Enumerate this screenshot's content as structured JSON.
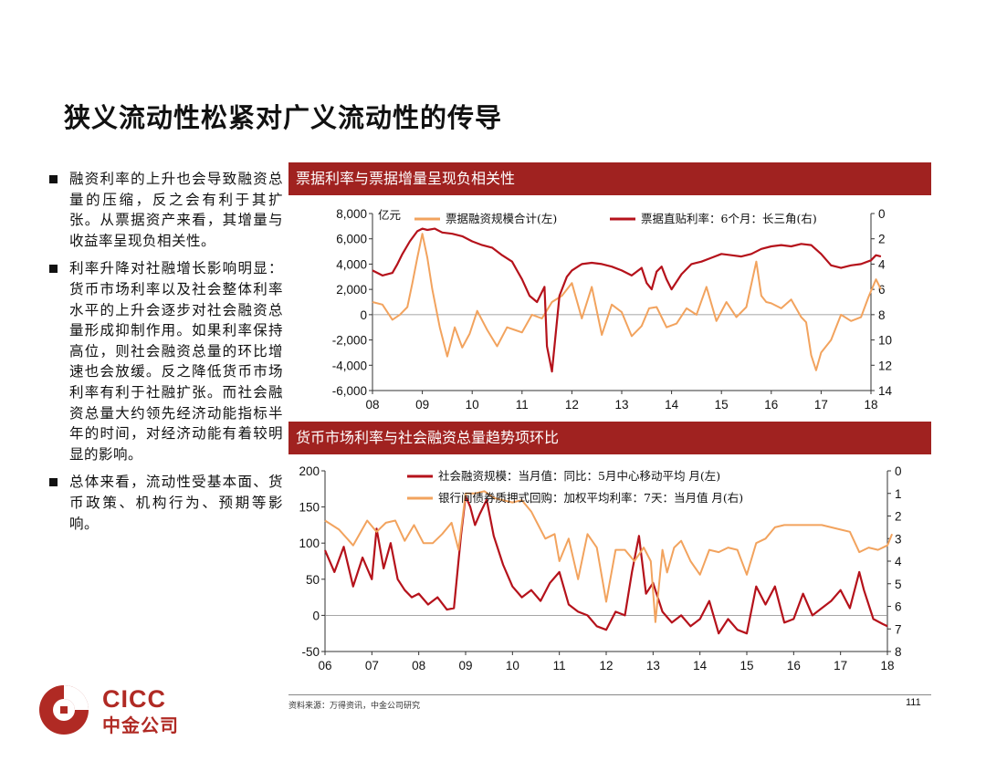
{
  "page": {
    "title": "狭义流动性松紧对广义流动性的传导",
    "bullets": [
      "融资利率的上升也会导致融资总量的压缩，反之会有利于其扩张。从票据资产来看，其增量与收益率呈现负相关性。",
      "利率升降对社融增长影响明显：货币市场利率以及社会整体利率水平的上升会逐步对社会融资总量形成抑制作用。如果利率保持高位，则社会融资总量的环比增速也会放缓。反之降低货币市场利率有利于社融扩张。而社会融资总量大约领先经济动能指标半年的时间，对经济动能有着较明显的影响。",
      "总体来看，流动性受基本面、货币政策、机构行为、预期等影响。"
    ],
    "source": "资料来源：万得资讯，中金公司研究",
    "page_number": "111",
    "logo_en": "CICC",
    "logo_cn": "中金公司"
  },
  "colors": {
    "red": "#b5121b",
    "orange": "#f2a35e",
    "header": "#a02220"
  },
  "chart_data": [
    {
      "type": "line",
      "title": "票据利率与票据增量呈现负相关性",
      "left_unit": "亿元",
      "x_ticks": [
        "08",
        "09",
        "10",
        "11",
        "12",
        "13",
        "14",
        "15",
        "16",
        "17",
        "18"
      ],
      "y_left_ticks": [
        "8,000",
        "6,000",
        "4,000",
        "2,000",
        "0",
        "-2,000",
        "-4,000",
        "-6,000"
      ],
      "y_left_range": [
        -6000,
        8000
      ],
      "y_right_ticks": [
        "0",
        "2",
        "4",
        "6",
        "8",
        "10",
        "12",
        "14"
      ],
      "y_right_range": [
        0,
        14
      ],
      "y_right_inverted": true,
      "series": [
        {
          "name": "票据融资规模合计(左)",
          "axis": "left",
          "color": "#f2a35e",
          "x": [
            2008.0,
            2008.2,
            2008.4,
            2008.55,
            2008.7,
            2008.8,
            2008.9,
            2009.0,
            2009.1,
            2009.2,
            2009.35,
            2009.5,
            2009.65,
            2009.8,
            2009.95,
            2010.1,
            2010.3,
            2010.5,
            2010.7,
            2010.85,
            2011.0,
            2011.2,
            2011.4,
            2011.6,
            2011.8,
            2012.0,
            2012.2,
            2012.4,
            2012.6,
            2012.8,
            2013.0,
            2013.2,
            2013.4,
            2013.55,
            2013.7,
            2013.9,
            2014.1,
            2014.3,
            2014.5,
            2014.7,
            2014.9,
            2015.1,
            2015.3,
            2015.5,
            2015.7,
            2015.8,
            2015.9,
            2016.0,
            2016.2,
            2016.4,
            2016.6,
            2016.7,
            2016.8,
            2016.9,
            2017.0,
            2017.2,
            2017.4,
            2017.6,
            2017.8,
            2017.95,
            2018.1,
            2018.2
          ],
          "y": [
            1000,
            800,
            -400,
            0,
            600,
            2500,
            4500,
            6400,
            4500,
            2000,
            -1000,
            -3300,
            -1000,
            -2600,
            -1500,
            300,
            -1200,
            -2500,
            -1000,
            -1200,
            -1400,
            0,
            -300,
            1000,
            1500,
            2500,
            -300,
            2200,
            -1600,
            800,
            200,
            -1700,
            -900,
            500,
            600,
            -1000,
            -700,
            500,
            0,
            2200,
            -500,
            1000,
            -200,
            600,
            4200,
            1500,
            1000,
            900,
            500,
            1200,
            -200,
            -600,
            -3200,
            -4400,
            -3000,
            -2000,
            0,
            -500,
            -200,
            1400,
            2800,
            2000
          ]
        },
        {
          "name": "票据直贴利率：6个月：长三角(右)",
          "axis": "right",
          "color": "#b5121b",
          "x": [
            2008.0,
            2008.2,
            2008.4,
            2008.5,
            2008.6,
            2008.75,
            2008.9,
            2009.0,
            2009.1,
            2009.25,
            2009.4,
            2009.6,
            2009.8,
            2010.0,
            2010.2,
            2010.4,
            2010.6,
            2010.8,
            2010.9,
            2011.0,
            2011.15,
            2011.3,
            2011.45,
            2011.5,
            2011.6,
            2011.75,
            2011.9,
            2012.0,
            2012.2,
            2012.4,
            2012.6,
            2012.8,
            2013.0,
            2013.2,
            2013.4,
            2013.5,
            2013.6,
            2013.7,
            2013.8,
            2013.9,
            2014.0,
            2014.2,
            2014.4,
            2014.6,
            2014.8,
            2015.0,
            2015.2,
            2015.4,
            2015.6,
            2015.8,
            2016.0,
            2016.2,
            2016.4,
            2016.6,
            2016.8,
            2017.0,
            2017.2,
            2017.4,
            2017.6,
            2017.8,
            2018.0,
            2018.1,
            2018.2
          ],
          "y": [
            4.5,
            4.9,
            4.7,
            4.0,
            3.2,
            2.2,
            1.4,
            1.2,
            1.3,
            1.2,
            1.5,
            1.6,
            1.8,
            2.2,
            2.5,
            2.7,
            3.3,
            3.8,
            4.5,
            5.2,
            6.5,
            7.0,
            5.8,
            10.5,
            12.5,
            6.5,
            5.0,
            4.5,
            4.0,
            3.9,
            4.0,
            4.2,
            4.5,
            4.9,
            4.3,
            5.5,
            6.0,
            4.6,
            4.2,
            5.2,
            6.0,
            4.8,
            4.0,
            3.8,
            3.5,
            3.2,
            3.3,
            3.4,
            3.2,
            2.8,
            2.6,
            2.5,
            2.6,
            2.4,
            2.5,
            3.2,
            4.1,
            4.3,
            4.1,
            4.0,
            3.7,
            3.3,
            3.4
          ]
        }
      ]
    },
    {
      "type": "line",
      "title": "货币市场利率与社会融资总量趋势项环比",
      "x_ticks": [
        "06",
        "07",
        "08",
        "09",
        "10",
        "11",
        "12",
        "13",
        "14",
        "15",
        "16",
        "17",
        "18"
      ],
      "y_left_ticks": [
        "200",
        "150",
        "100",
        "50",
        "0",
        "-50"
      ],
      "y_left_range": [
        -50,
        200
      ],
      "y_right_ticks": [
        "0",
        "1",
        "2",
        "3",
        "4",
        "5",
        "6",
        "7",
        "8"
      ],
      "y_right_range": [
        0,
        8
      ],
      "y_right_inverted": true,
      "series": [
        {
          "name": "社会融资规模：当月值：同比：5月中心移动平均  月(左)",
          "axis": "left",
          "color": "#b5121b",
          "x": [
            2006.0,
            2006.2,
            2006.4,
            2006.6,
            2006.8,
            2007.0,
            2007.1,
            2007.25,
            2007.4,
            2007.55,
            2007.7,
            2007.85,
            2008.0,
            2008.2,
            2008.4,
            2008.6,
            2008.75,
            2008.9,
            2009.0,
            2009.1,
            2009.2,
            2009.3,
            2009.45,
            2009.6,
            2009.8,
            2010.0,
            2010.2,
            2010.4,
            2010.6,
            2010.8,
            2011.0,
            2011.2,
            2011.4,
            2011.6,
            2011.8,
            2012.0,
            2012.2,
            2012.4,
            2012.55,
            2012.7,
            2012.85,
            2013.0,
            2013.2,
            2013.4,
            2013.6,
            2013.8,
            2014.0,
            2014.2,
            2014.4,
            2014.6,
            2014.8,
            2015.0,
            2015.2,
            2015.4,
            2015.6,
            2015.8,
            2016.0,
            2016.2,
            2016.4,
            2016.6,
            2016.8,
            2017.0,
            2017.2,
            2017.4,
            2017.5,
            2017.7,
            2017.9,
            2018.0
          ],
          "y": [
            90,
            60,
            95,
            40,
            80,
            50,
            120,
            65,
            100,
            50,
            35,
            25,
            30,
            15,
            25,
            8,
            10,
            110,
            165,
            150,
            125,
            140,
            160,
            110,
            70,
            40,
            25,
            35,
            20,
            45,
            60,
            15,
            5,
            0,
            -15,
            -20,
            5,
            0,
            60,
            110,
            30,
            45,
            5,
            -10,
            0,
            -15,
            -5,
            20,
            -25,
            -5,
            -20,
            -25,
            40,
            15,
            40,
            -10,
            -5,
            30,
            0,
            10,
            20,
            35,
            10,
            60,
            35,
            -5,
            -12,
            -15
          ]
        },
        {
          "name": "银行间债券质押式回购：加权平均利率：7天：当月值  月(右)",
          "axis": "right",
          "color": "#f2a35e",
          "x": [
            2006.0,
            2006.3,
            2006.6,
            2006.9,
            2007.1,
            2007.3,
            2007.5,
            2007.7,
            2007.9,
            2008.1,
            2008.3,
            2008.5,
            2008.7,
            2008.85,
            2009.0,
            2009.2,
            2009.4,
            2009.6,
            2009.8,
            2010.0,
            2010.2,
            2010.4,
            2010.5,
            2010.7,
            2010.9,
            2011.0,
            2011.2,
            2011.4,
            2011.6,
            2011.8,
            2012.0,
            2012.2,
            2012.4,
            2012.6,
            2012.8,
            2012.95,
            2013.05,
            2013.2,
            2013.3,
            2013.45,
            2013.6,
            2013.8,
            2014.0,
            2014.2,
            2014.4,
            2014.6,
            2014.8,
            2015.0,
            2015.2,
            2015.4,
            2015.6,
            2015.8,
            2016.0,
            2016.2,
            2016.4,
            2016.6,
            2016.8,
            2017.0,
            2017.2,
            2017.4,
            2017.6,
            2017.8,
            2018.0,
            2018.1
          ],
          "y": [
            2.2,
            2.6,
            3.3,
            2.2,
            2.7,
            2.3,
            2.2,
            3.1,
            2.4,
            3.2,
            3.2,
            2.8,
            2.3,
            3.5,
            1.0,
            1.0,
            0.9,
            1.2,
            1.3,
            1.4,
            1.3,
            1.8,
            2.2,
            3.0,
            2.8,
            4.0,
            3.0,
            4.8,
            2.8,
            3.4,
            5.8,
            3.5,
            3.5,
            4.0,
            3.4,
            4.0,
            6.7,
            3.5,
            4.5,
            3.4,
            3.1,
            4.0,
            4.6,
            3.5,
            3.6,
            3.4,
            3.5,
            4.6,
            3.2,
            3.0,
            2.5,
            2.4,
            2.4,
            2.4,
            2.4,
            2.4,
            2.5,
            2.6,
            2.7,
            3.6,
            3.4,
            3.5,
            3.3,
            2.8
          ]
        }
      ]
    }
  ]
}
